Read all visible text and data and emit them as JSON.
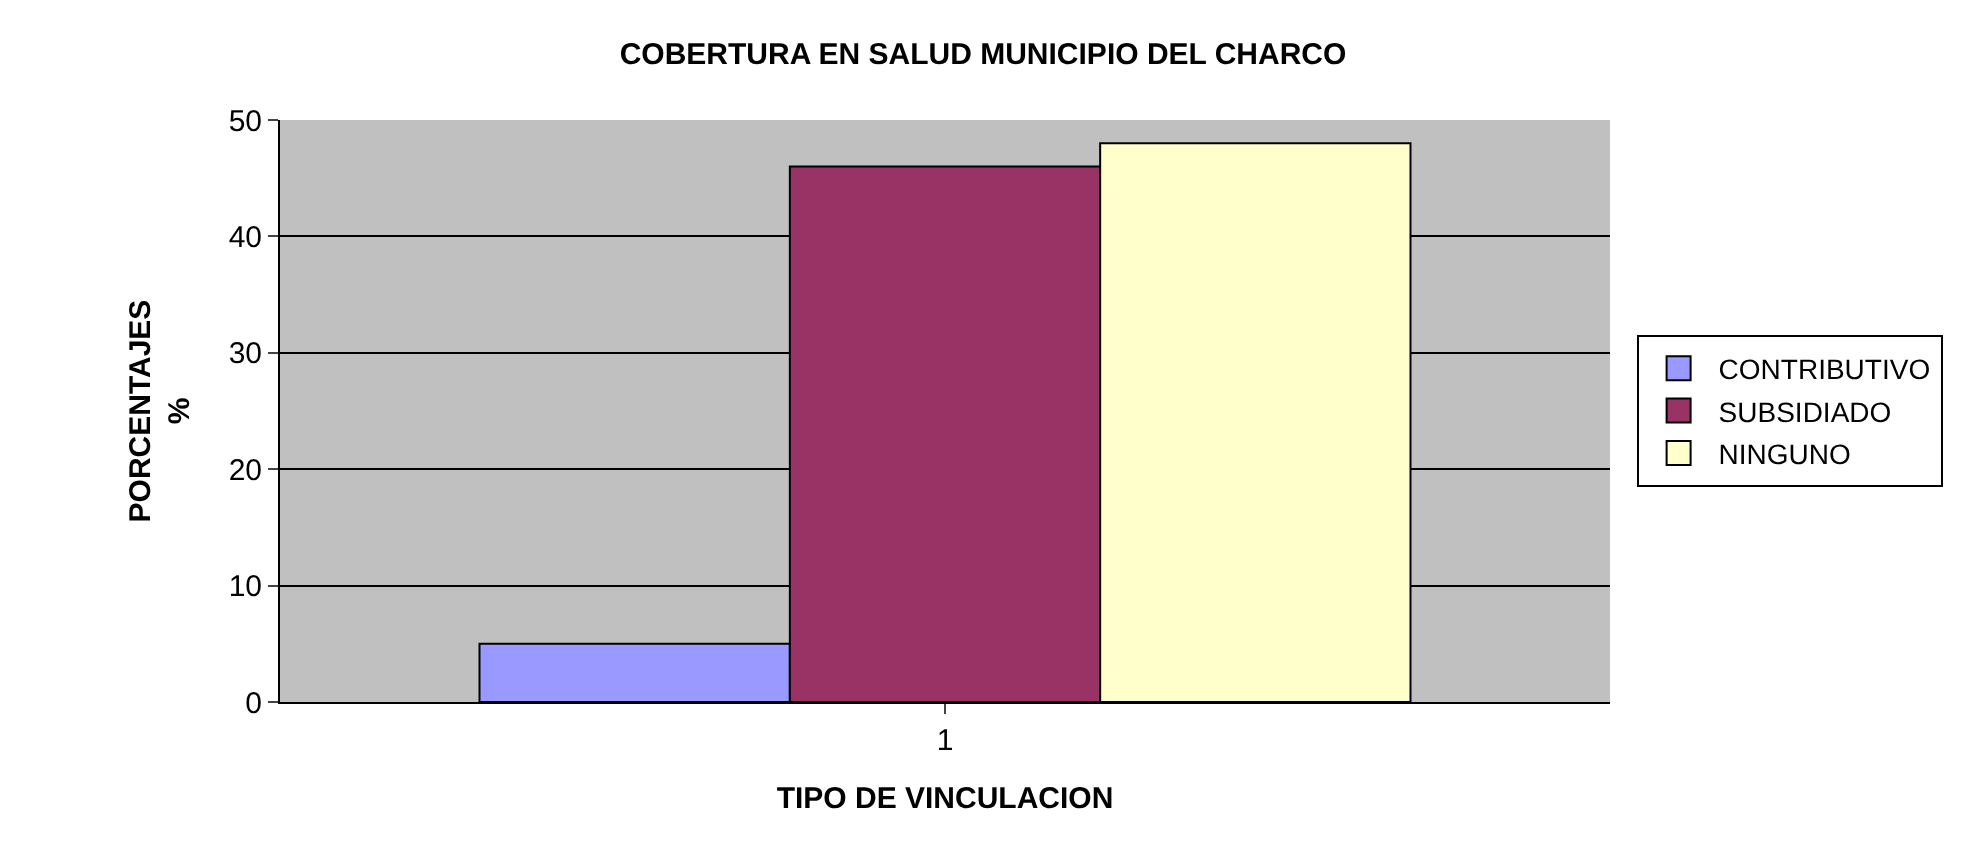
{
  "chart_data": {
    "type": "bar",
    "title": "COBERTURA EN SALUD MUNICIPIO DEL CHARCO",
    "xlabel": "TIPO DE VINCULACION",
    "ylabel": "PORCENTAJES\n%",
    "categories": [
      "1"
    ],
    "series": [
      {
        "name": "CONTRIBUTIVO",
        "color": "#9999ff",
        "values": [
          5
        ]
      },
      {
        "name": "SUBSIDIADO",
        "color": "#993366",
        "values": [
          46
        ]
      },
      {
        "name": "NINGUNO",
        "color": "#ffffcc",
        "values": [
          48
        ]
      }
    ],
    "ylim": [
      0,
      50
    ],
    "yticks": [
      0,
      10,
      20,
      30,
      40,
      50
    ],
    "grid": "y",
    "legend": "right"
  }
}
